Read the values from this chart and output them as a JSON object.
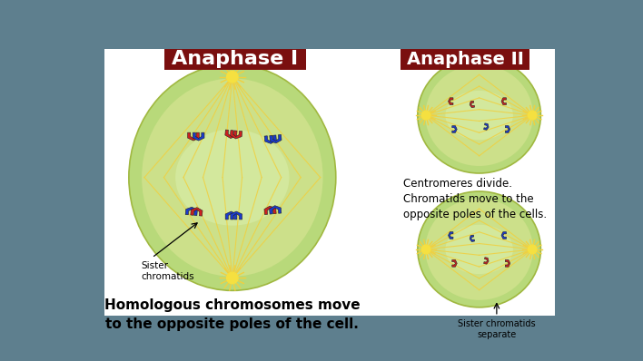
{
  "bg_color": "#5e7f8e",
  "panel_bg": "#ffffff",
  "title1": "Anaphase I",
  "title2": "Anaphase II",
  "title_bg": "#7a0f0f",
  "title_color": "#ffffff",
  "title_fontsize": 16,
  "cell_green_outer": "#b8d97a",
  "cell_green_inner": "#cce08a",
  "cell_highlight": "#d8eca0",
  "spindle_color": "#f0d040",
  "aster_color": "#f5e040",
  "chromosome_red": "#cc2020",
  "chromosome_blue": "#1a3acc",
  "annotation_color": "#111111",
  "desc1": "Homologous chromosomes move\nto the opposite poles of the cell.",
  "desc2": "Centromeres divide.\nChromatids move to the\nopposite poles of the cells.",
  "desc3": "Sister chromatids\nseparate",
  "label_sister": "Sister\nchromatids",
  "desc1_fontsize": 11,
  "desc2_fontsize": 8.5,
  "desc3_fontsize": 7
}
